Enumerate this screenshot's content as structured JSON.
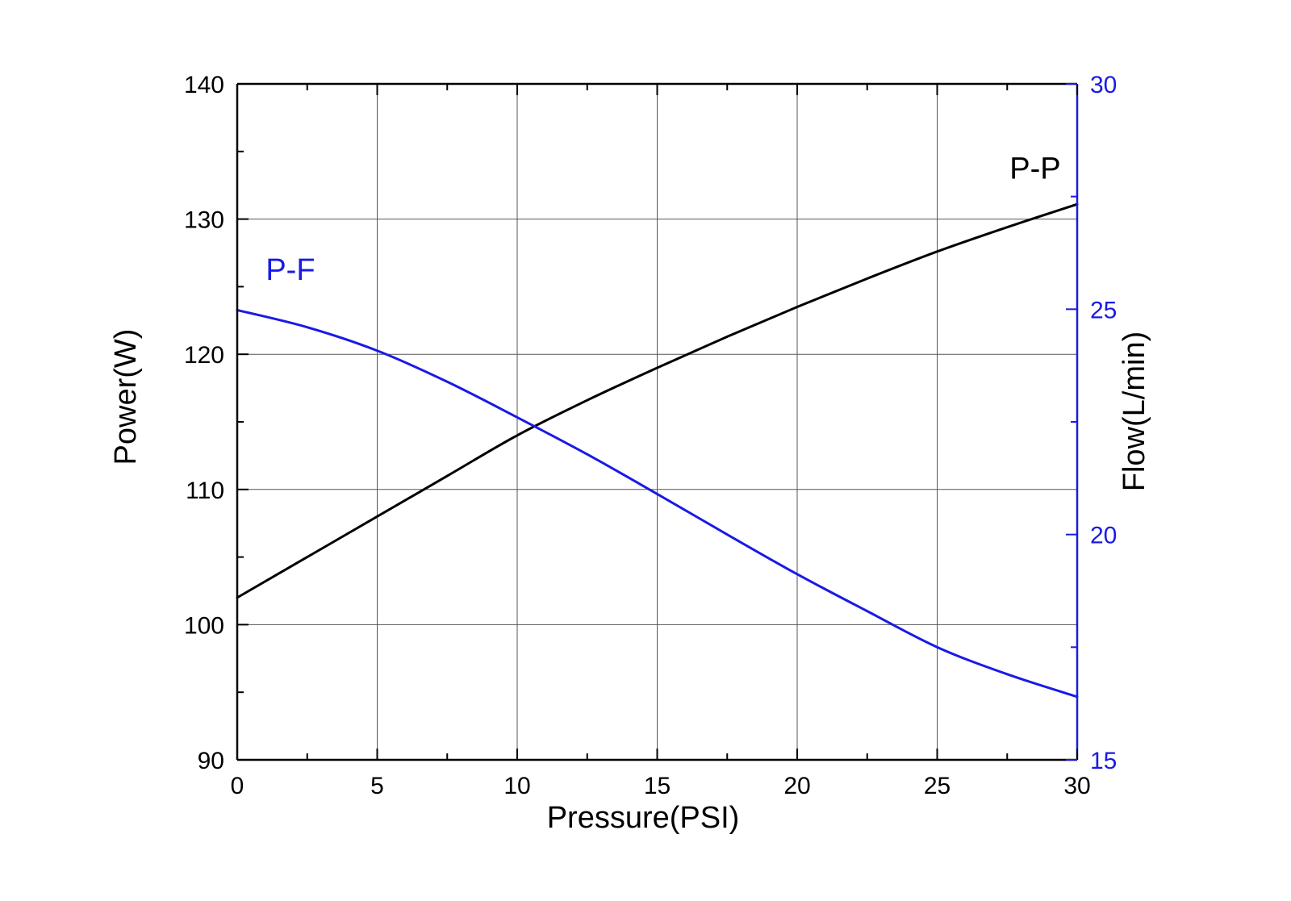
{
  "chart_data": {
    "type": "line",
    "title": "",
    "xlabel": "Pressure(PSI)",
    "ylabel": "Power(W)",
    "y2label": "Flow(L/min)",
    "xlim": [
      0,
      30
    ],
    "ylim": [
      90,
      140
    ],
    "y2lim": [
      15,
      30
    ],
    "xticks": [
      0,
      5,
      10,
      15,
      20,
      25,
      30
    ],
    "yticks": [
      90,
      100,
      110,
      120,
      130,
      140
    ],
    "y2ticks": [
      15,
      20,
      25,
      30
    ],
    "grid": true,
    "colors": {
      "axis": "#000000",
      "grid": "#555555",
      "power": "#000000",
      "flow": "#1a1ae6"
    },
    "series": [
      {
        "name": "P-P",
        "axis": "left",
        "color": "#000000",
        "x": [
          0,
          2.5,
          5,
          7.5,
          10,
          12.5,
          15,
          17.5,
          20,
          22.5,
          25,
          27.5,
          30
        ],
        "values": [
          102.0,
          105.0,
          108.0,
          111.0,
          114.0,
          116.6,
          119.0,
          121.3,
          123.5,
          125.6,
          127.6,
          129.4,
          131.1
        ]
      },
      {
        "name": "P-F",
        "axis": "right",
        "color": "#1a1ae6",
        "x": [
          0,
          2.5,
          5,
          7.5,
          10,
          12.5,
          15,
          17.5,
          20,
          22.5,
          25,
          27.5,
          30
        ],
        "values": [
          24.98,
          24.6,
          24.08,
          23.39,
          22.6,
          21.78,
          20.9,
          20.0,
          19.12,
          18.3,
          17.5,
          16.9,
          16.4
        ]
      }
    ],
    "annotations": [
      {
        "text": "P-P",
        "series": "P-P",
        "x": 28.5,
        "y": 133.0,
        "axis": "left"
      },
      {
        "text": "P-F",
        "series": "P-F",
        "x": 1.9,
        "y": 25.65,
        "axis": "right"
      }
    ]
  }
}
